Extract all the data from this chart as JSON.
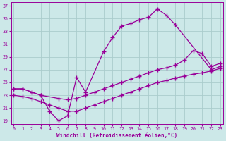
{
  "bg_color": "#cce8e8",
  "grid_color": "#aacccc",
  "line_color": "#990099",
  "xlabel": "Windchill (Refroidissement éolien,°C)",
  "xlim": [
    -0.3,
    23.3
  ],
  "ylim": [
    18.5,
    37.5
  ],
  "xticks": [
    0,
    1,
    2,
    3,
    4,
    5,
    6,
    7,
    8,
    9,
    10,
    11,
    12,
    13,
    14,
    15,
    16,
    17,
    18,
    19,
    20,
    21,
    22,
    23
  ],
  "yticks": [
    19,
    21,
    23,
    25,
    27,
    29,
    31,
    33,
    35,
    37
  ],
  "series": [
    {
      "x": [
        0,
        1,
        2,
        3,
        4,
        5,
        6,
        7,
        8,
        10,
        11,
        12,
        13,
        14,
        15,
        16,
        17,
        18,
        22,
        23
      ],
      "y": [
        24,
        24,
        23.5,
        23,
        20.5,
        19.0,
        19.8,
        25.8,
        23.5,
        29.8,
        32.0,
        33.8,
        34.2,
        34.8,
        35.2,
        36.5,
        35.5,
        34.0,
        27.0,
        27.5
      ]
    },
    {
      "x": [
        0,
        1,
        2,
        3,
        5,
        6,
        7,
        8,
        9,
        10,
        11,
        12,
        13,
        14,
        15,
        16,
        17,
        18,
        19,
        20,
        21,
        22,
        23
      ],
      "y": [
        24.0,
        24.0,
        23.5,
        23.0,
        22.5,
        22.3,
        22.5,
        23.0,
        23.5,
        24.0,
        24.5,
        25.0,
        25.5,
        26.0,
        26.5,
        27.0,
        27.3,
        27.7,
        28.5,
        30.0,
        29.5,
        27.5,
        28.0
      ]
    },
    {
      "x": [
        0,
        1,
        2,
        3,
        4,
        5,
        6,
        7,
        8,
        9,
        10,
        11,
        12,
        13,
        14,
        15,
        16,
        17,
        18,
        19,
        20,
        21,
        22,
        23
      ],
      "y": [
        23.0,
        22.8,
        22.5,
        22.0,
        21.5,
        21.0,
        20.5,
        20.5,
        21.0,
        21.5,
        22.0,
        22.5,
        23.0,
        23.5,
        24.0,
        24.5,
        25.0,
        25.3,
        25.7,
        26.0,
        26.3,
        26.5,
        26.8,
        27.2
      ]
    }
  ]
}
